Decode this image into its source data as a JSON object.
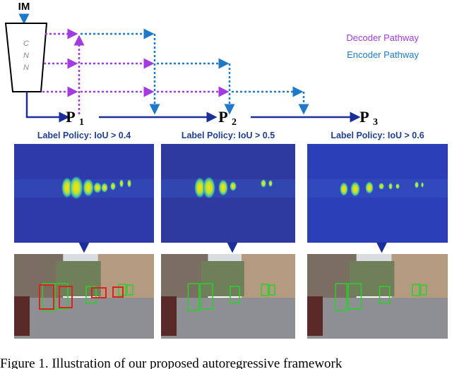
{
  "header": {
    "input": "IM",
    "network": [
      "C",
      "N",
      "N"
    ]
  },
  "legend": {
    "decoder": "Decoder Pathway",
    "encoder": "Encoder Pathway"
  },
  "outputs": [
    {
      "symbol": "P",
      "subscript": "1",
      "policy": "Label Policy:  IoU > 0.4"
    },
    {
      "symbol": "P",
      "subscript": "2",
      "policy": "Label Policy:  IoU > 0.5"
    },
    {
      "symbol": "P",
      "subscript": "3",
      "policy": "Label Policy:  IoU > 0.6"
    }
  ],
  "caption": "Figure 1.   Illustration of our proposed autoregressive framework"
}
